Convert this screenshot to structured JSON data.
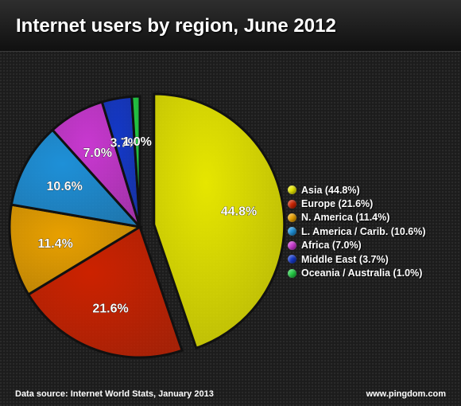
{
  "chart_data": {
    "type": "pie",
    "title": "Internet users by region, June 2012",
    "categories": [
      "Asia",
      "Europe",
      "N. America",
      "L. America / Carib.",
      "Africa",
      "Middle East",
      "Oceania / Australia"
    ],
    "values": [
      44.8,
      21.6,
      11.4,
      10.6,
      7.0,
      3.7,
      1.0
    ],
    "slice_labels": [
      "44.8%",
      "21.6%",
      "11.4%",
      "10.6%",
      "7.0%",
      "3.7%",
      "1.0%"
    ],
    "legend_entries": [
      "Asia (44.8%)",
      "Europe (21.6%)",
      "N. America (11.4%)",
      "L. America / Carib. (10.6%)",
      "Africa (7.0%)",
      "Middle East (3.7%)",
      "Oceania / Australia (1.0%)"
    ],
    "colors": [
      "#e6e600",
      "#cc2200",
      "#e8a000",
      "#1e90d8",
      "#c838d0",
      "#1438c8",
      "#22cc44"
    ],
    "exploded": "Asia",
    "legend_placement": "right",
    "units": "percent"
  },
  "footer": {
    "source": "Data source: Internet World Stats, January 2013",
    "site": "www.pingdom.com"
  }
}
